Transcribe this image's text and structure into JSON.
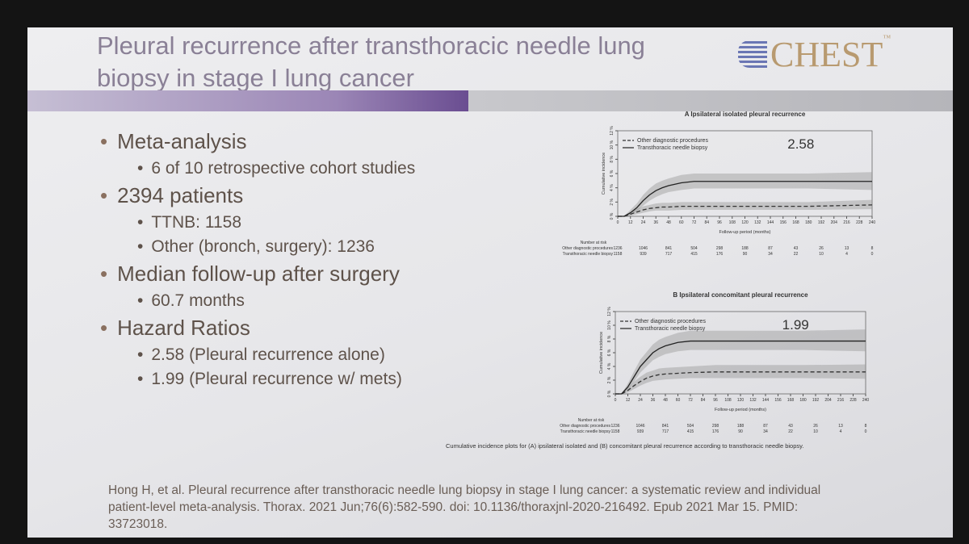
{
  "header": {
    "title": "Pleural recurrence after transthoracic needle lung biopsy in stage I lung cancer",
    "logo": "CHEST",
    "logo_tm": "™"
  },
  "bullets": [
    {
      "text": "Meta-analysis",
      "items": [
        "6 of 10 retrospective cohort studies"
      ]
    },
    {
      "text": "2394 patients",
      "items": [
        "TTNB: 1158",
        "Other (bronch, surgery): 1236"
      ]
    },
    {
      "text": "Median follow-up after surgery",
      "items": [
        "60.7 months"
      ]
    },
    {
      "text": "Hazard Ratios",
      "items": [
        "2.58 (Pleural recurrence alone)",
        "1.99 (Pleural recurrence w/ mets)"
      ]
    }
  ],
  "citation": "Hong H, et al. Pleural recurrence after transthoracic needle lung biopsy in stage I lung cancer: a systematic review and individual patient-level meta-analysis. Thorax. 2021 Jun;76(6):582-590. doi: 10.1136/thoraxjnl-2020-216492. Epub 2021 Mar 15. PMID: 33723018.",
  "caption": "Cumulative incidence plots for (A) ipsilateral isolated and (B) concomitant pleural recurrence according to transthoracic needle biopsy.",
  "chart_data": [
    {
      "type": "line",
      "title": "A  Ipsilateral isolated pleural recurrence",
      "annotation": "2.58",
      "xlabel": "Follow-up period (months)",
      "ylabel": "Cumulative incidence",
      "x": [
        0,
        6,
        12,
        18,
        24,
        30,
        36,
        42,
        48,
        60,
        72,
        96,
        120,
        180,
        240
      ],
      "xlim": [
        0,
        240
      ],
      "xticks": [
        0,
        12,
        24,
        36,
        48,
        60,
        72,
        84,
        96,
        108,
        120,
        132,
        144,
        156,
        168,
        180,
        192,
        204,
        216,
        228,
        240
      ],
      "ylim": [
        0,
        12
      ],
      "yticks": [
        {
          "value": 0,
          "label": "0 %"
        },
        {
          "value": 2,
          "label": "2 %"
        },
        {
          "value": 4,
          "label": "4 %"
        },
        {
          "value": 6,
          "label": "6 %"
        },
        {
          "value": 8,
          "label": "8 %"
        },
        {
          "value": 10,
          "label": "10 %"
        },
        {
          "value": 12,
          "label": "12 %"
        }
      ],
      "series": [
        {
          "name": "Other diagnostic procedures",
          "color": "#333333",
          "line_style": "dashed",
          "values": [
            0,
            0,
            0.3,
            0.6,
            0.9,
            1.1,
            1.2,
            1.3,
            1.3,
            1.4,
            1.4,
            1.4,
            1.4,
            1.4,
            1.6
          ],
          "lower": [
            0,
            0,
            0.1,
            0.3,
            0.5,
            0.7,
            0.8,
            0.8,
            0.8,
            0.9,
            0.9,
            0.9,
            0.9,
            0.9,
            1.0
          ],
          "upper": [
            0,
            0,
            0.6,
            1.0,
            1.4,
            1.6,
            1.8,
            1.9,
            1.9,
            2.0,
            2.0,
            2.0,
            2.0,
            2.0,
            2.3
          ]
        },
        {
          "name": "Transthoracic needle biopsy",
          "color": "#222222",
          "line_style": "solid",
          "values": [
            0,
            0,
            0.5,
            1.2,
            2.2,
            3.0,
            3.6,
            4.0,
            4.3,
            4.7,
            4.9,
            4.9,
            4.9,
            4.9,
            4.9
          ],
          "lower": [
            0,
            0,
            0.2,
            0.7,
            1.5,
            2.2,
            2.7,
            3.1,
            3.4,
            3.7,
            3.9,
            3.9,
            3.9,
            3.9,
            3.7
          ],
          "upper": [
            0,
            0,
            0.9,
            1.8,
            3.0,
            3.9,
            4.6,
            5.0,
            5.3,
            5.8,
            6.0,
            6.0,
            6.0,
            6.0,
            6.2
          ]
        }
      ],
      "risk": {
        "label": "Number at risk",
        "x": [
          0,
          24,
          48,
          72,
          96,
          120,
          144,
          168,
          192,
          216,
          240
        ],
        "rows": [
          {
            "name": "Other diagnostic procedures",
            "values": [
              1236,
              1046,
              841,
              504,
              298,
              188,
              87,
              43,
              26,
              13,
              8
            ]
          },
          {
            "name": "Transthoracic needle biopsy",
            "values": [
              1158,
              939,
              717,
              415,
              176,
              90,
              34,
              22,
              10,
              4,
              0
            ]
          }
        ]
      }
    },
    {
      "type": "line",
      "title": "B  Ipsilateral concomitant pleural recurrence",
      "annotation": "1.99",
      "xlabel": "Follow-up period (months)",
      "ylabel": "Cumulative incidence",
      "x": [
        0,
        6,
        12,
        18,
        24,
        30,
        36,
        42,
        48,
        60,
        72,
        96,
        120,
        180,
        240
      ],
      "xlim": [
        0,
        240
      ],
      "xticks": [
        0,
        12,
        24,
        36,
        48,
        60,
        72,
        84,
        96,
        108,
        120,
        132,
        144,
        156,
        168,
        180,
        192,
        204,
        216,
        228,
        240
      ],
      "ylim": [
        0,
        12
      ],
      "yticks": [
        {
          "value": 0,
          "label": "0 %"
        },
        {
          "value": 2,
          "label": "2 %"
        },
        {
          "value": 4,
          "label": "4 %"
        },
        {
          "value": 6,
          "label": "6 %"
        },
        {
          "value": 8,
          "label": "8 %"
        },
        {
          "value": 10,
          "label": "10 %"
        },
        {
          "value": 12,
          "label": "12 %"
        }
      ],
      "series": [
        {
          "name": "Other diagnostic procedures",
          "color": "#333333",
          "line_style": "dashed",
          "values": [
            0,
            0,
            0.5,
            1.2,
            1.8,
            2.3,
            2.6,
            2.8,
            2.9,
            3.0,
            3.1,
            3.2,
            3.2,
            3.2,
            3.2
          ],
          "lower": [
            0,
            0,
            0.2,
            0.7,
            1.2,
            1.6,
            1.9,
            2.0,
            2.1,
            2.2,
            2.3,
            2.3,
            2.3,
            2.3,
            2.2
          ],
          "upper": [
            0,
            0,
            0.9,
            1.8,
            2.5,
            3.1,
            3.4,
            3.7,
            3.8,
            3.9,
            4.0,
            4.2,
            4.2,
            4.2,
            4.3
          ]
        },
        {
          "name": "Transthoracic needle biopsy",
          "color": "#222222",
          "line_style": "solid",
          "values": [
            0,
            0,
            1.0,
            2.5,
            4.0,
            5.0,
            6.0,
            6.6,
            7.0,
            7.5,
            7.7,
            7.7,
            7.7,
            7.7,
            7.7
          ],
          "lower": [
            0,
            0,
            0.6,
            1.8,
            3.1,
            4.0,
            4.9,
            5.4,
            5.8,
            6.2,
            6.4,
            6.4,
            6.4,
            6.4,
            6.2
          ],
          "upper": [
            0,
            0,
            1.5,
            3.3,
            5.0,
            6.1,
            7.2,
            7.9,
            8.3,
            8.9,
            9.2,
            9.2,
            9.2,
            9.2,
            9.4
          ]
        }
      ],
      "risk": {
        "label": "Number at risk",
        "x": [
          0,
          24,
          48,
          72,
          96,
          120,
          144,
          168,
          192,
          216,
          240
        ],
        "rows": [
          {
            "name": "Other diagnostic procedures",
            "values": [
              1236,
              1046,
              841,
              504,
              298,
              188,
              87,
              43,
              26,
              13,
              8
            ]
          },
          {
            "name": "Transthoracic needle biopsy",
            "values": [
              1158,
              939,
              717,
              415,
              176,
              90,
              34,
              22,
              10,
              4,
              0
            ]
          }
        ]
      }
    }
  ]
}
